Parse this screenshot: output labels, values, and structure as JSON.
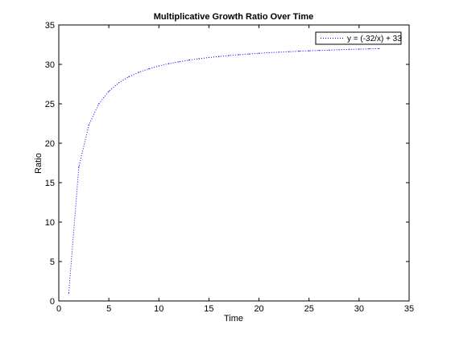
{
  "chart_data": {
    "type": "line",
    "title": "Multiplicative Growth Ratio Over Time",
    "xlabel": "Time",
    "ylabel": "Ratio",
    "xlim": [
      0,
      35
    ],
    "ylim": [
      0,
      35
    ],
    "xticks": [
      0,
      5,
      10,
      15,
      20,
      25,
      30,
      35
    ],
    "yticks": [
      0,
      5,
      10,
      15,
      20,
      25,
      30,
      35
    ],
    "grid": false,
    "legend_location": "top-right",
    "series": [
      {
        "name": "y = (-32/x) + 33",
        "color": "#0000ff",
        "line_style": "dotted",
        "x": [
          1,
          2,
          3,
          4,
          5,
          6,
          7,
          8,
          9,
          10,
          11,
          12,
          13,
          14,
          15,
          16,
          17,
          18,
          19,
          20,
          21,
          22,
          23,
          24,
          25,
          26,
          27,
          28,
          29,
          30,
          31,
          32
        ],
        "y": [
          1,
          17,
          22.33,
          25,
          26.6,
          27.67,
          28.43,
          29,
          29.44,
          29.8,
          30.09,
          30.33,
          30.54,
          30.71,
          30.87,
          31,
          31.12,
          31.22,
          31.32,
          31.4,
          31.48,
          31.55,
          31.61,
          31.67,
          31.72,
          31.77,
          31.81,
          31.86,
          31.9,
          31.93,
          31.97,
          32
        ]
      }
    ]
  }
}
